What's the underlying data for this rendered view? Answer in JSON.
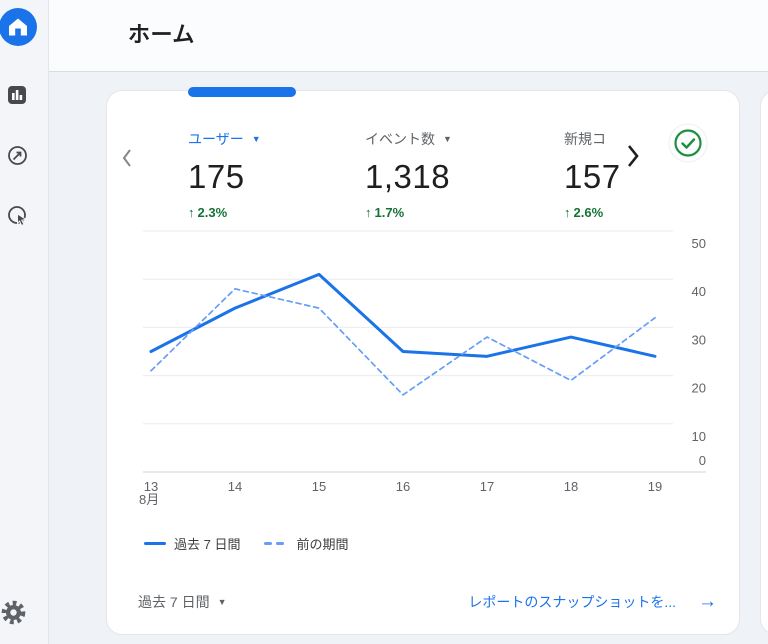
{
  "header": {
    "title": "ホーム"
  },
  "sidebar": {
    "icons": [
      "home",
      "reports",
      "explore",
      "advertising",
      "settings"
    ]
  },
  "icons": {
    "caret_down": "▼",
    "up_arrow": "↑",
    "right_arrow": "→"
  },
  "colors": {
    "accent_blue": "#1a73e8",
    "compare_blue": "#669df6",
    "delta_green": "#137333",
    "check_green": "#1e8e3e",
    "text_dark": "#202124",
    "text_gray": "#5f6368"
  },
  "card": {
    "metrics": [
      {
        "label": "ユーザー",
        "value": "175",
        "delta": "2.3%",
        "selected": true
      },
      {
        "label": "イベント数",
        "value": "1,318",
        "delta": "1.7%",
        "selected": false
      },
      {
        "label": "新規コ",
        "value": "157",
        "delta": "2.6%",
        "selected": false
      }
    ],
    "status_badge": "check",
    "legend": [
      {
        "label": "過去 7 日間",
        "style": "solid"
      },
      {
        "label": "前の期間",
        "style": "dashed"
      }
    ],
    "footer": {
      "range_label": "過去 7 日間",
      "link_label": "レポートのスナップショットを..."
    }
  },
  "chart_data": {
    "type": "line",
    "x": [
      "13",
      "14",
      "15",
      "16",
      "17",
      "18",
      "19"
    ],
    "x_sublabel": "8月",
    "series": [
      {
        "name": "過去 7 日間",
        "style": "solid",
        "values": [
          25,
          34,
          41,
          25,
          24,
          28,
          24
        ]
      },
      {
        "name": "前の期間",
        "style": "dashed",
        "values": [
          21,
          38,
          34,
          16,
          28,
          19,
          32
        ]
      }
    ],
    "ylim": [
      0,
      50
    ],
    "yticks": [
      0,
      10,
      20,
      30,
      40,
      50
    ],
    "grid": true,
    "legend_position": "bottom"
  }
}
